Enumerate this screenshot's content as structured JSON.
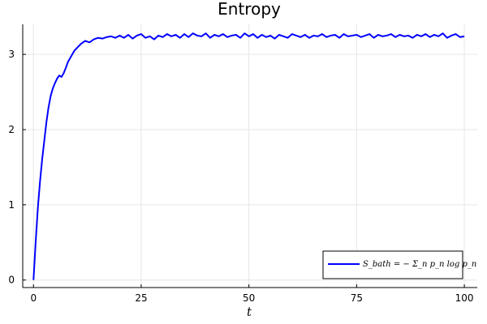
{
  "chart_data": {
    "type": "line",
    "title": "Entropy",
    "xlabel": "t",
    "ylabel": "",
    "xlim": [
      -2.5,
      103
    ],
    "ylim": [
      -0.1,
      3.4
    ],
    "xticks": [
      0,
      25,
      50,
      75,
      100
    ],
    "yticks": [
      0,
      1,
      2,
      3
    ],
    "grid": true,
    "legend_position": "bottom-right",
    "series": [
      {
        "name": "S_bath = − Σ_n p_n log p_n",
        "color": "#0000ff",
        "x": [
          0,
          0.5,
          1,
          1.5,
          2,
          2.5,
          3,
          3.5,
          4,
          4.5,
          5,
          5.5,
          6,
          6.5,
          7,
          7.5,
          8,
          8.5,
          9,
          9.5,
          10,
          11,
          12,
          13,
          14,
          15,
          16,
          17,
          18,
          19,
          20,
          21,
          22,
          23,
          24,
          25,
          26,
          27,
          28,
          29,
          30,
          31,
          32,
          33,
          34,
          35,
          36,
          37,
          38,
          39,
          40,
          41,
          42,
          43,
          44,
          45,
          46,
          47,
          48,
          49,
          50,
          51,
          52,
          53,
          54,
          55,
          56,
          57,
          58,
          59,
          60,
          61,
          62,
          63,
          64,
          65,
          66,
          67,
          68,
          69,
          70,
          71,
          72,
          73,
          74,
          75,
          76,
          77,
          78,
          79,
          80,
          81,
          82,
          83,
          84,
          85,
          86,
          87,
          88,
          89,
          90,
          91,
          92,
          93,
          94,
          95,
          96,
          97,
          98,
          99,
          100
        ],
        "y": [
          0.0,
          0.5,
          0.95,
          1.3,
          1.6,
          1.85,
          2.1,
          2.3,
          2.45,
          2.55,
          2.62,
          2.68,
          2.72,
          2.7,
          2.75,
          2.82,
          2.9,
          2.95,
          3.0,
          3.05,
          3.08,
          3.14,
          3.18,
          3.16,
          3.2,
          3.22,
          3.21,
          3.23,
          3.24,
          3.22,
          3.25,
          3.22,
          3.26,
          3.21,
          3.25,
          3.27,
          3.22,
          3.24,
          3.2,
          3.25,
          3.23,
          3.27,
          3.24,
          3.26,
          3.22,
          3.27,
          3.23,
          3.28,
          3.25,
          3.24,
          3.28,
          3.22,
          3.26,
          3.24,
          3.27,
          3.23,
          3.25,
          3.26,
          3.22,
          3.28,
          3.24,
          3.27,
          3.22,
          3.26,
          3.23,
          3.25,
          3.21,
          3.26,
          3.24,
          3.22,
          3.27,
          3.25,
          3.23,
          3.26,
          3.22,
          3.25,
          3.24,
          3.27,
          3.23,
          3.25,
          3.26,
          3.22,
          3.27,
          3.24,
          3.25,
          3.26,
          3.23,
          3.25,
          3.27,
          3.22,
          3.26,
          3.24,
          3.25,
          3.27,
          3.23,
          3.26,
          3.24,
          3.25,
          3.22,
          3.26,
          3.24,
          3.27,
          3.23,
          3.26,
          3.24,
          3.28,
          3.22,
          3.25,
          3.27,
          3.23,
          3.24
        ]
      }
    ]
  }
}
